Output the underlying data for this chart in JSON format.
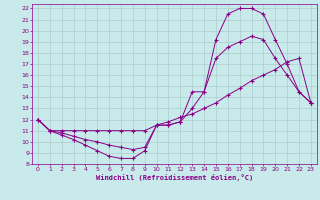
{
  "xlabel": "Windchill (Refroidissement éolien,°C)",
  "bg_color": "#c8eaea",
  "grid_color": "#aacccc",
  "line_color": "#880088",
  "spine_color": "#880088",
  "xlim": [
    -0.5,
    23.5
  ],
  "ylim": [
    8,
    22.4
  ],
  "xticks": [
    0,
    1,
    2,
    3,
    4,
    5,
    6,
    7,
    8,
    9,
    10,
    11,
    12,
    13,
    14,
    15,
    16,
    17,
    18,
    19,
    20,
    21,
    22,
    23
  ],
  "yticks": [
    8,
    9,
    10,
    11,
    12,
    13,
    14,
    15,
    16,
    17,
    18,
    19,
    20,
    21,
    22
  ],
  "curve1_x": [
    0,
    1,
    2,
    3,
    4,
    5,
    6,
    7,
    8,
    9,
    10,
    11,
    12,
    13,
    14,
    15,
    16,
    17,
    18,
    19,
    20,
    21,
    22,
    23
  ],
  "curve1_y": [
    12,
    11,
    10.6,
    10.2,
    9.7,
    9.2,
    8.7,
    8.5,
    8.5,
    9.2,
    11.5,
    11.5,
    11.8,
    14.5,
    14.5,
    19.2,
    21.5,
    22.0,
    22.0,
    21.5,
    19.2,
    17.0,
    14.5,
    13.5
  ],
  "curve2_x": [
    0,
    1,
    2,
    3,
    4,
    5,
    6,
    7,
    8,
    9,
    10,
    11,
    12,
    13,
    14,
    15,
    16,
    17,
    18,
    19,
    20,
    21,
    22,
    23
  ],
  "curve2_y": [
    12,
    11,
    10.8,
    10.5,
    10.2,
    10.0,
    9.7,
    9.5,
    9.3,
    9.5,
    11.5,
    11.5,
    11.8,
    13.0,
    14.5,
    17.5,
    18.5,
    19.0,
    19.5,
    19.2,
    17.5,
    16.0,
    14.5,
    13.5
  ],
  "curve3_x": [
    0,
    1,
    2,
    3,
    4,
    5,
    6,
    7,
    8,
    9,
    10,
    11,
    12,
    13,
    14,
    15,
    16,
    17,
    18,
    19,
    20,
    21,
    22,
    23
  ],
  "curve3_y": [
    12,
    11,
    11.0,
    11.0,
    11.0,
    11.0,
    11.0,
    11.0,
    11.0,
    11.0,
    11.5,
    11.8,
    12.2,
    12.5,
    13.0,
    13.5,
    14.2,
    14.8,
    15.5,
    16.0,
    16.5,
    17.2,
    17.5,
    13.5
  ]
}
